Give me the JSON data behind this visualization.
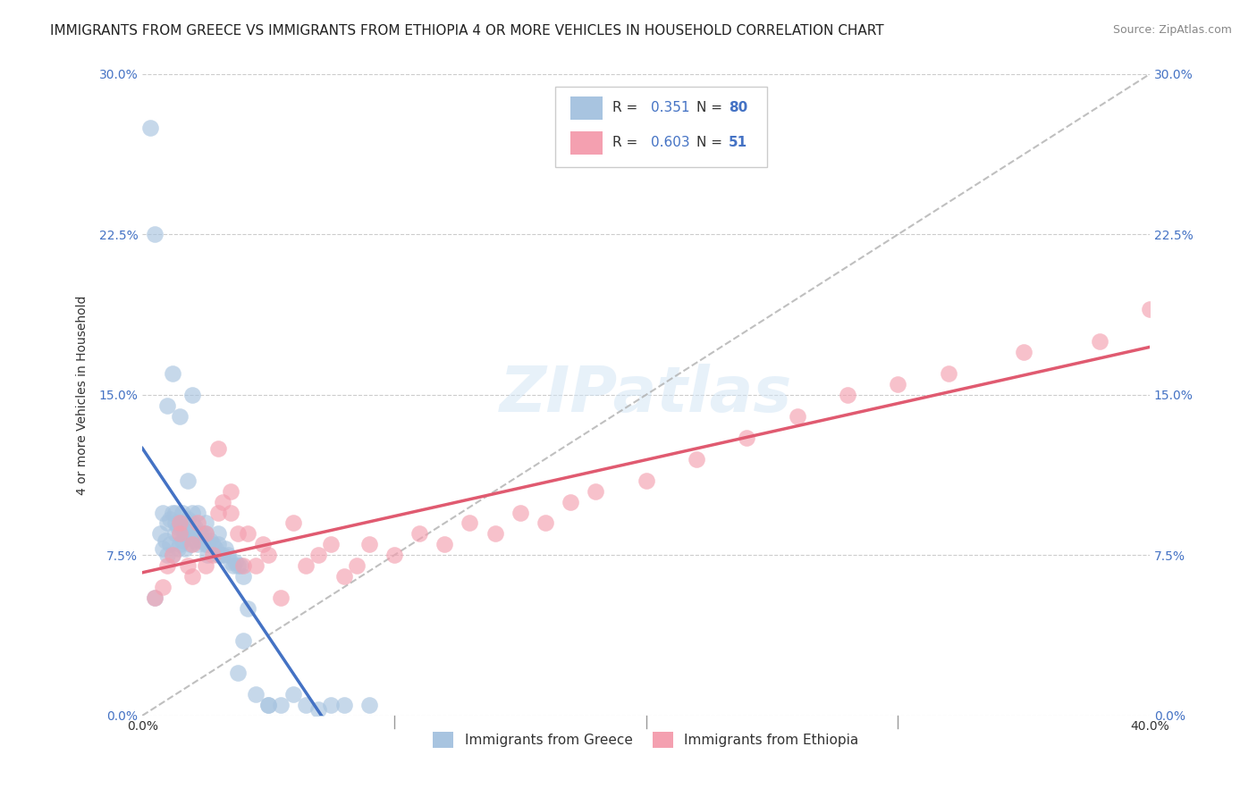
{
  "title": "IMMIGRANTS FROM GREECE VS IMMIGRANTS FROM ETHIOPIA 4 OR MORE VEHICLES IN HOUSEHOLD CORRELATION CHART",
  "source": "Source: ZipAtlas.com",
  "ylabel": "4 or more Vehicles in Household",
  "yticks": [
    "0.0%",
    "7.5%",
    "15.0%",
    "22.5%",
    "30.0%"
  ],
  "ytick_vals": [
    0.0,
    7.5,
    15.0,
    22.5,
    30.0
  ],
  "xlim": [
    0.0,
    40.0
  ],
  "ylim": [
    0.0,
    30.0
  ],
  "greece_R": 0.351,
  "greece_N": 80,
  "ethiopia_R": 0.603,
  "ethiopia_N": 51,
  "greece_color": "#a8c4e0",
  "ethiopia_color": "#f4a0b0",
  "greece_line_color": "#4472c4",
  "ethiopia_line_color": "#e05a70",
  "diagonal_color": "#b0b0b0",
  "background_color": "#ffffff",
  "greece_x": [
    0.3,
    0.5,
    0.5,
    0.7,
    0.8,
    0.8,
    0.9,
    1.0,
    1.0,
    1.1,
    1.1,
    1.2,
    1.2,
    1.3,
    1.3,
    1.4,
    1.4,
    1.5,
    1.5,
    1.5,
    1.6,
    1.6,
    1.7,
    1.7,
    1.8,
    1.8,
    1.9,
    1.9,
    2.0,
    2.0,
    2.0,
    2.1,
    2.1,
    2.2,
    2.2,
    2.3,
    2.3,
    2.4,
    2.5,
    2.5,
    2.6,
    2.6,
    2.7,
    2.8,
    2.9,
    3.0,
    3.0,
    3.1,
    3.2,
    3.3,
    3.4,
    3.5,
    3.6,
    3.7,
    3.8,
    3.9,
    4.0,
    4.2,
    4.5,
    5.0,
    5.5,
    6.0,
    6.5,
    7.0,
    1.0,
    1.2,
    1.5,
    2.0,
    1.8,
    1.6,
    2.5,
    3.0,
    4.0,
    1.3,
    2.2,
    3.8,
    5.0,
    7.5,
    8.0,
    9.0
  ],
  "greece_y": [
    27.5,
    22.5,
    5.5,
    8.5,
    9.5,
    7.8,
    8.2,
    9.0,
    7.5,
    9.2,
    8.0,
    7.5,
    9.5,
    9.0,
    8.5,
    8.8,
    7.8,
    9.0,
    8.5,
    8.0,
    8.8,
    8.2,
    8.5,
    7.8,
    9.2,
    8.8,
    8.5,
    8.0,
    9.5,
    9.0,
    8.5,
    8.8,
    8.2,
    8.5,
    8.0,
    8.5,
    8.2,
    8.5,
    8.5,
    8.0,
    8.0,
    7.5,
    8.2,
    8.0,
    7.8,
    7.5,
    8.0,
    7.5,
    7.5,
    7.8,
    7.5,
    7.2,
    7.0,
    7.2,
    7.0,
    7.0,
    6.5,
    5.0,
    1.0,
    0.5,
    0.5,
    1.0,
    0.5,
    0.3,
    14.5,
    16.0,
    14.0,
    15.0,
    11.0,
    9.5,
    9.0,
    8.5,
    3.5,
    9.5,
    9.5,
    2.0,
    0.5,
    0.5,
    0.5,
    0.5
  ],
  "ethiopia_x": [
    0.5,
    0.8,
    1.0,
    1.2,
    1.5,
    1.5,
    1.8,
    2.0,
    2.0,
    2.2,
    2.5,
    2.5,
    2.8,
    3.0,
    3.0,
    3.2,
    3.5,
    3.5,
    3.8,
    4.0,
    4.2,
    4.5,
    4.8,
    5.0,
    5.5,
    6.0,
    6.5,
    7.0,
    7.5,
    8.0,
    8.5,
    9.0,
    10.0,
    11.0,
    12.0,
    13.0,
    14.0,
    15.0,
    16.0,
    17.0,
    18.0,
    20.0,
    22.0,
    24.0,
    26.0,
    28.0,
    30.0,
    32.0,
    35.0,
    38.0,
    40.0
  ],
  "ethiopia_y": [
    5.5,
    6.0,
    7.0,
    7.5,
    8.5,
    9.0,
    7.0,
    8.0,
    6.5,
    9.0,
    8.5,
    7.0,
    7.5,
    9.5,
    12.5,
    10.0,
    10.5,
    9.5,
    8.5,
    7.0,
    8.5,
    7.0,
    8.0,
    7.5,
    5.5,
    9.0,
    7.0,
    7.5,
    8.0,
    6.5,
    7.0,
    8.0,
    7.5,
    8.5,
    8.0,
    9.0,
    8.5,
    9.5,
    9.0,
    10.0,
    10.5,
    11.0,
    12.0,
    13.0,
    14.0,
    15.0,
    15.5,
    16.0,
    17.0,
    17.5,
    19.0
  ],
  "title_fontsize": 11,
  "source_fontsize": 9,
  "axis_label_fontsize": 10,
  "tick_fontsize": 10
}
